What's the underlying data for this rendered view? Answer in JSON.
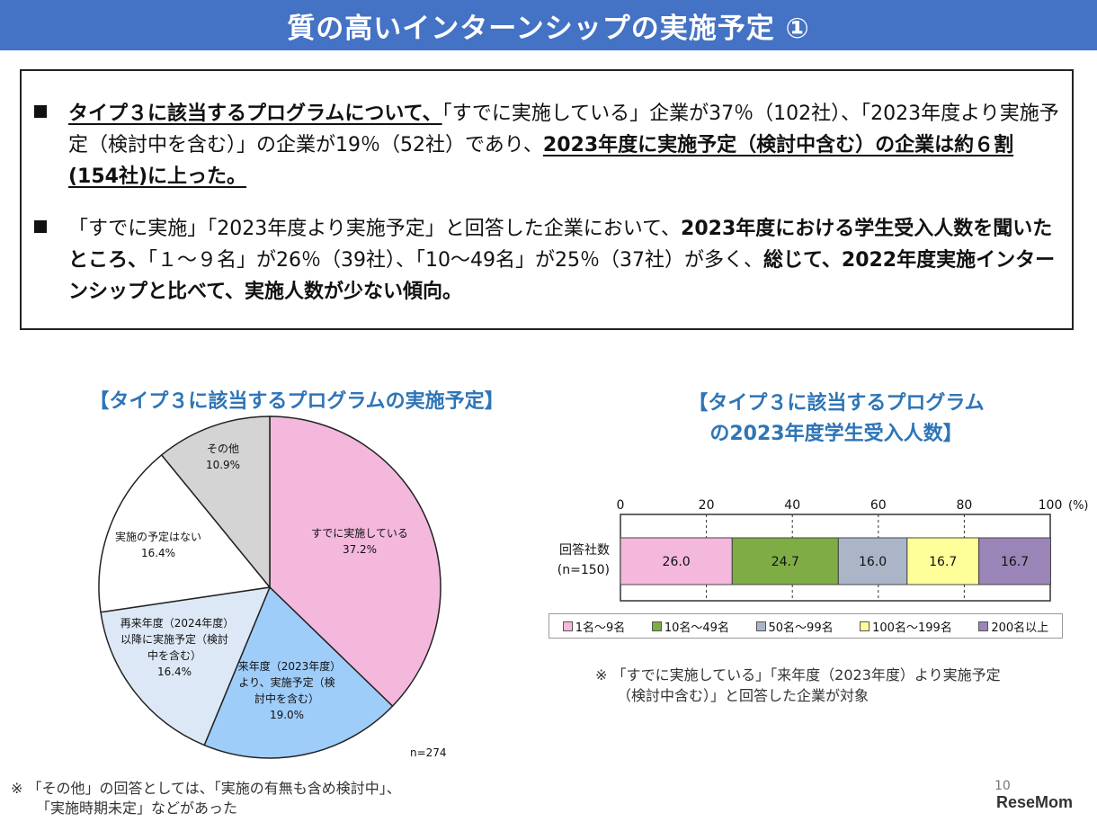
{
  "title": "質の高いインターンシップの実施予定 ①",
  "summary": {
    "bullet1": {
      "p1": "タイプ３に該当するプログラムについて、",
      "p2": "「すでに実施している」企業が37％（102社）、「2023年度より実施予定（検討中を含む）」の企業が19％（52社）であり、",
      "p3": "2023年度に実施予定（検討中含む）の企業は約６割(154社)に上った。"
    },
    "bullet2": {
      "p1": "「すでに実施」「2023年度より実施予定」と回答した企業において、",
      "p2": "2023年度における学生受入人数を聞いたところ、",
      "p3": "「１～９名」が26％（39社）、「10～49名」が25％（37社）が多く、",
      "p4": "総じて、2022年度実施インターンシップと比べて、実施人数が少ない傾向。"
    }
  },
  "chart_data": [
    {
      "type": "pie",
      "title": "【タイプ３に該当するプログラムの実施予定】",
      "n_label": "n=274",
      "slices": [
        {
          "label": "すでに実施している",
          "value": 37.2,
          "text": "37.2%",
          "color": "#f4b8dc"
        },
        {
          "label": "来年度（2023年度）より、実施予定（検討中を含む）",
          "value": 19.0,
          "text": "19.0%",
          "color": "#9fcdfa"
        },
        {
          "label": "再来年度（2024年度）以降に実施予定（検討中を含む）",
          "value": 16.4,
          "text": "16.4%",
          "color": "#dce8f5"
        },
        {
          "label": "実施の予定はない",
          "value": 16.4,
          "text": "16.4%",
          "color": "#ffffff"
        },
        {
          "label": "その他",
          "value": 10.9,
          "text": "10.9%",
          "color": "#d4d4d4"
        }
      ]
    },
    {
      "type": "bar",
      "stacked": true,
      "orientation": "horizontal",
      "title_line1": "【タイプ３に該当するプログラム",
      "title_line2": "の2023年度学生受入人数】",
      "category_label_line1": "回答社数",
      "category_label_line2": "(n=150)",
      "xlim": [
        0,
        100
      ],
      "ticks": [
        "0",
        "20",
        "40",
        "60",
        "80",
        "100"
      ],
      "unit": "(%)",
      "grid": "dashed vertical",
      "legend_position": "bottom",
      "series": [
        {
          "name": "1名～9名",
          "value": 26.0,
          "text": "26.0",
          "color": "#f4b8dc"
        },
        {
          "name": "10名～49名",
          "value": 24.7,
          "text": "24.7",
          "color": "#7fac45"
        },
        {
          "name": "50名～99名",
          "value": 16.0,
          "text": "16.0",
          "color": "#aab6c8"
        },
        {
          "name": "100名～199名",
          "value": 16.7,
          "text": "16.7",
          "color": "#ffff99"
        },
        {
          "name": "200名以上",
          "value": 16.7,
          "text": "16.7",
          "color": "#9b85b8"
        }
      ]
    }
  ],
  "notes": {
    "bar_note_line1": "※ 「すでに実施している」「来年度（2023年度）より実施予定",
    "bar_note_line2": "（検討中含む）」と回答した企業が対象",
    "pie_note_line1": "※ 「その他」の回答としては、「実施の有無も含め検討中」、",
    "pie_note_line2": "「実施時期未定」などがあった"
  },
  "page_number": "10",
  "logo_text": "ReseMom"
}
